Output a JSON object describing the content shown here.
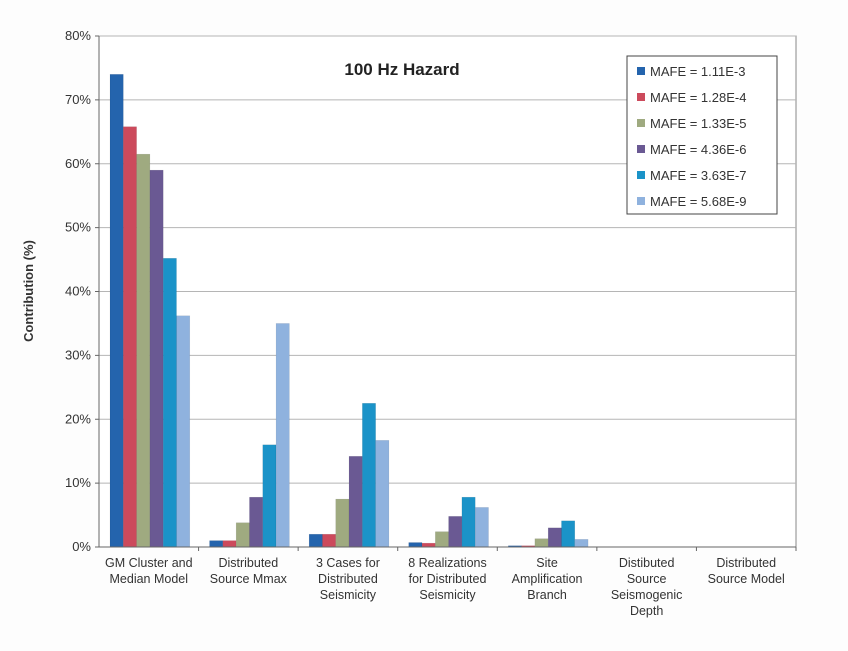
{
  "chart_data": {
    "type": "bar",
    "title": "100 Hz Hazard",
    "xlabel": "",
    "ylabel": "Contribution (%)",
    "ylim": [
      0,
      80
    ],
    "yticks": [
      "0%",
      "10%",
      "20%",
      "30%",
      "40%",
      "50%",
      "60%",
      "70%",
      "80%"
    ],
    "grid": true,
    "legend_position": "top-right",
    "categories": [
      [
        "GM Cluster and",
        "Median Model"
      ],
      [
        "Distributed",
        "Source Mmax"
      ],
      [
        "3 Cases for",
        "Distributed",
        "Seismicity"
      ],
      [
        "8 Realizations",
        "for Distributed",
        "Seismicity"
      ],
      [
        "Site",
        "Amplification",
        "Branch"
      ],
      [
        "Distibuted",
        "Source",
        "Seismogenic",
        "Depth"
      ],
      [
        "Distributed",
        "Source Model"
      ]
    ],
    "series": [
      {
        "name": "MAFE = 1.11E-3",
        "color": "#2464ad",
        "values": [
          74,
          1,
          2,
          0.7,
          0.2,
          0,
          0
        ]
      },
      {
        "name": "MAFE = 1.28E-4",
        "color": "#cc4a5c",
        "values": [
          65.8,
          1,
          2,
          0.6,
          0.2,
          0,
          0
        ]
      },
      {
        "name": "MAFE = 1.33E-5",
        "color": "#9faa80",
        "values": [
          61.5,
          3.8,
          7.5,
          2.4,
          1.3,
          0,
          0
        ]
      },
      {
        "name": "MAFE = 4.36E-6",
        "color": "#6a5993",
        "values": [
          59,
          7.8,
          14.2,
          4.8,
          3,
          0,
          0
        ]
      },
      {
        "name": "MAFE = 3.63E-7",
        "color": "#1b93c8",
        "values": [
          45.2,
          16,
          22.5,
          7.8,
          4.1,
          0,
          0
        ]
      },
      {
        "name": "MAFE = 5.68E-9",
        "color": "#8fb2de",
        "values": [
          36.2,
          35,
          16.7,
          6.2,
          1.2,
          0,
          0
        ]
      }
    ]
  }
}
